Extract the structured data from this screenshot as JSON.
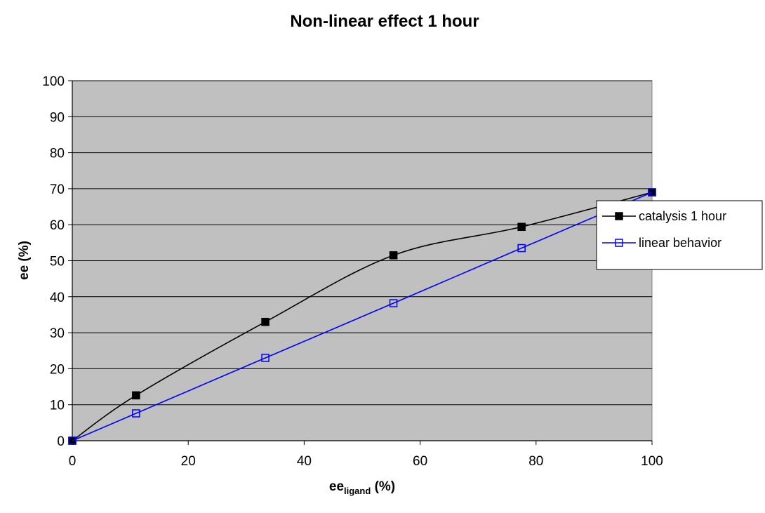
{
  "chart_data": {
    "type": "line",
    "title": "Non-linear effect 1 hour",
    "xlabel": "ee",
    "xlabel_sub": "ligand",
    "xlabel_suffix": " (%)",
    "ylabel": "ee (%)",
    "xlim": [
      0,
      100
    ],
    "ylim": [
      0,
      100
    ],
    "xticks": [
      0,
      20,
      40,
      60,
      80,
      100
    ],
    "yticks": [
      0,
      10,
      20,
      30,
      40,
      50,
      60,
      70,
      80,
      90,
      100
    ],
    "grid": "horizontal",
    "legend_position": "right",
    "plot_background": "#c0c0c0",
    "series": [
      {
        "name": "catalysis 1 hour",
        "color": "#000000",
        "marker": "filled-square",
        "x": [
          0,
          11,
          33.3,
          55.4,
          77.5,
          100
        ],
        "y": [
          0,
          12.6,
          33,
          51.5,
          59.4,
          69
        ]
      },
      {
        "name": "linear behavior",
        "color": "#0000ff",
        "marker": "open-square",
        "x": [
          0,
          11,
          33.3,
          55.4,
          77.5,
          100
        ],
        "y": [
          0,
          7.6,
          23,
          38.2,
          53.5,
          69
        ]
      }
    ]
  }
}
